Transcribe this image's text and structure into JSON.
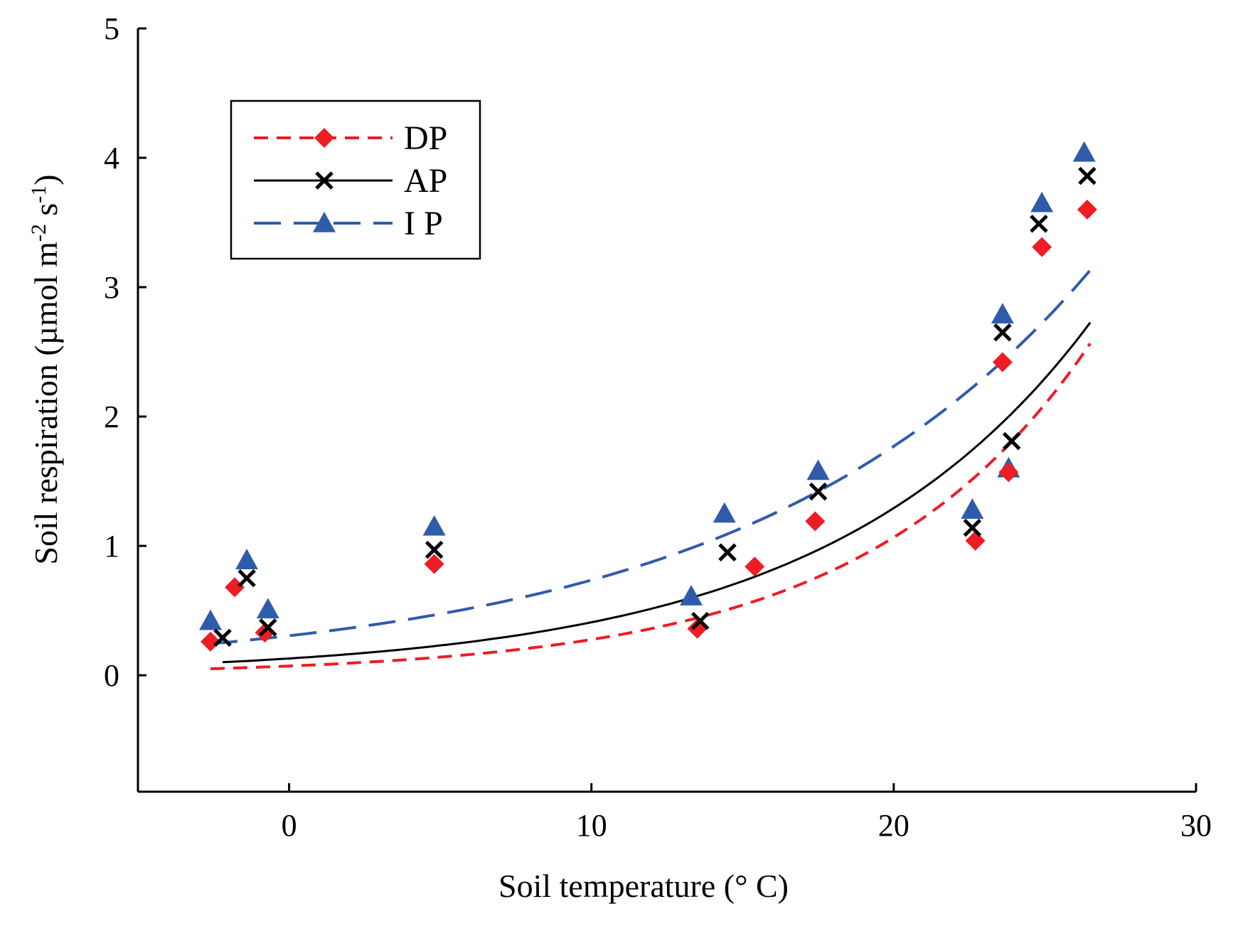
{
  "chart_data": {
    "type": "scatter",
    "title": "",
    "xlabel": "Soil temperature (° C)",
    "ylabel_main": "Soil respiration (µmol m",
    "ylabel_sup1": "-2",
    "ylabel_mid": " s",
    "ylabel_sup2": "-1",
    "ylabel_end": ")",
    "xlim": [
      -5,
      30
    ],
    "ylim": [
      -0.9,
      5
    ],
    "x_ticks": [
      0,
      10,
      20,
      30
    ],
    "y_ticks": [
      0,
      1,
      2,
      3,
      4,
      5
    ],
    "x_tick_labels": [
      "0",
      "10",
      "20",
      "30"
    ],
    "y_tick_labels": [
      "0",
      "1",
      "2",
      "3",
      "4",
      "5"
    ],
    "legend_position": "top-left",
    "series": [
      {
        "name": "DP",
        "color": "#ee1c24",
        "marker": "diamond",
        "line": "short-dash",
        "fit": {
          "a": 0.0715,
          "b": 0.1351,
          "x_range": [
            -2.6,
            26.5
          ]
        },
        "points": [
          {
            "x": -2.6,
            "y": 0.26
          },
          {
            "x": -1.8,
            "y": 0.68
          },
          {
            "x": -0.8,
            "y": 0.33
          },
          {
            "x": 4.8,
            "y": 0.86
          },
          {
            "x": 13.5,
            "y": 0.36
          },
          {
            "x": 15.4,
            "y": 0.84
          },
          {
            "x": 17.4,
            "y": 1.19
          },
          {
            "x": 22.7,
            "y": 1.04
          },
          {
            "x": 23.6,
            "y": 2.42
          },
          {
            "x": 23.8,
            "y": 1.57
          },
          {
            "x": 24.9,
            "y": 3.31
          },
          {
            "x": 26.4,
            "y": 3.6
          }
        ]
      },
      {
        "name": "AP",
        "color": "#000000",
        "marker": "x",
        "line": "solid",
        "fit": {
          "a": 0.1298,
          "b": 0.1149,
          "x_range": [
            -2.2,
            26.5
          ]
        },
        "points": [
          {
            "x": -2.2,
            "y": 0.29
          },
          {
            "x": -1.4,
            "y": 0.75
          },
          {
            "x": -0.7,
            "y": 0.37
          },
          {
            "x": 4.8,
            "y": 0.97
          },
          {
            "x": 13.6,
            "y": 0.42
          },
          {
            "x": 14.5,
            "y": 0.95
          },
          {
            "x": 17.5,
            "y": 1.42
          },
          {
            "x": 22.6,
            "y": 1.14
          },
          {
            "x": 23.6,
            "y": 2.65
          },
          {
            "x": 23.9,
            "y": 1.81
          },
          {
            "x": 24.8,
            "y": 3.49
          },
          {
            "x": 26.4,
            "y": 3.86
          }
        ]
      },
      {
        "name": "I P",
        "color": "#2f5caa",
        "marker": "triangle",
        "line": "long-dash",
        "fit": {
          "a": 0.3057,
          "b": 0.0878,
          "x_range": [
            -2.6,
            26.5
          ]
        },
        "points": [
          {
            "x": -2.6,
            "y": 0.42
          },
          {
            "x": -1.4,
            "y": 0.89
          },
          {
            "x": -0.7,
            "y": 0.51
          },
          {
            "x": 4.8,
            "y": 1.15
          },
          {
            "x": 13.3,
            "y": 0.61
          },
          {
            "x": 14.4,
            "y": 1.25
          },
          {
            "x": 17.5,
            "y": 1.58
          },
          {
            "x": 22.6,
            "y": 1.28
          },
          {
            "x": 23.6,
            "y": 2.79
          },
          {
            "x": 23.8,
            "y": 1.6
          },
          {
            "x": 24.9,
            "y": 3.65
          },
          {
            "x": 26.3,
            "y": 4.04
          }
        ]
      }
    ]
  }
}
